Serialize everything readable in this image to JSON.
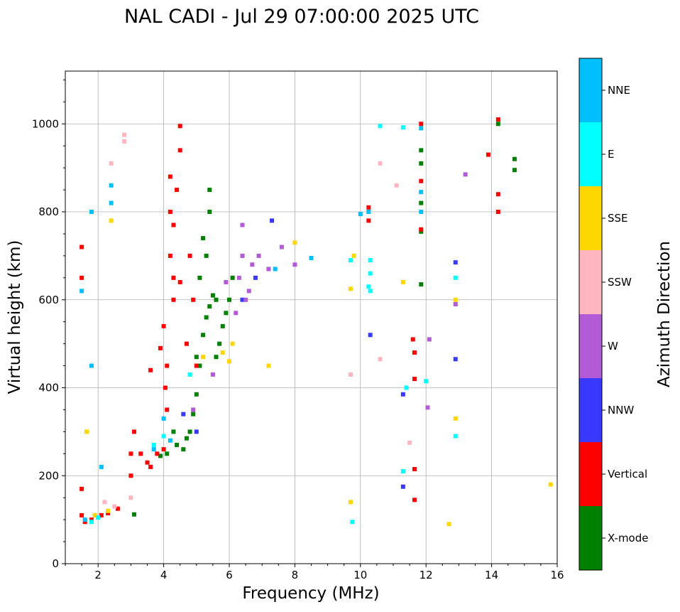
{
  "chart_data": {
    "type": "scatter",
    "title": "NAL CADI - Jul 29 07:00:00 2025 UTC",
    "xlabel": "Frequency (MHz)",
    "ylabel": "Virtual height (km)",
    "xlim": [
      1,
      16
    ],
    "ylim": [
      0,
      1120
    ],
    "xticks": [
      2,
      4,
      6,
      8,
      10,
      12,
      14,
      16
    ],
    "yticks": [
      0,
      200,
      400,
      600,
      800,
      1000
    ],
    "grid": true,
    "colorbar": {
      "label": "Azimuth Direction",
      "categories": [
        "X-mode",
        "Vertical",
        "NNW",
        "W",
        "SSW",
        "SSE",
        "E",
        "NNE"
      ],
      "colors": [
        "#008000",
        "#ff0000",
        "#3838ff",
        "#b35ad6",
        "#ffb6c1",
        "#ffd700",
        "#00ffff",
        "#00bfff"
      ]
    },
    "series": [
      {
        "name": "X-mode",
        "points": [
          [
            3.1,
            112
          ],
          [
            3.9,
            245
          ],
          [
            4.1,
            250
          ],
          [
            4.3,
            300
          ],
          [
            4.4,
            270
          ],
          [
            4.6,
            260
          ],
          [
            4.7,
            285
          ],
          [
            4.8,
            300
          ],
          [
            4.9,
            340
          ],
          [
            5.0,
            385
          ],
          [
            5.1,
            450
          ],
          [
            5.2,
            520
          ],
          [
            5.3,
            560
          ],
          [
            5.4,
            585
          ],
          [
            5.5,
            610
          ],
          [
            5.6,
            470
          ],
          [
            5.7,
            500
          ],
          [
            5.8,
            540
          ],
          [
            5.9,
            570
          ],
          [
            6.0,
            600
          ],
          [
            5.1,
            650
          ],
          [
            5.3,
            700
          ],
          [
            5.2,
            740
          ],
          [
            5.4,
            800
          ],
          [
            5.4,
            850
          ],
          [
            6.1,
            650
          ],
          [
            11.85,
            940
          ],
          [
            11.85,
            910
          ],
          [
            11.85,
            820
          ],
          [
            11.85,
            755
          ],
          [
            11.85,
            635
          ],
          [
            14.2,
            1000
          ],
          [
            14.7,
            920
          ],
          [
            14.7,
            895
          ],
          [
            5.0,
            470
          ],
          [
            5.6,
            600
          ]
        ]
      },
      {
        "name": "Vertical",
        "points": [
          [
            1.5,
            170
          ],
          [
            1.5,
            110
          ],
          [
            1.6,
            95
          ],
          [
            1.8,
            100
          ],
          [
            2.1,
            110
          ],
          [
            2.3,
            115
          ],
          [
            2.6,
            125
          ],
          [
            3.0,
            200
          ],
          [
            3.0,
            250
          ],
          [
            3.1,
            300
          ],
          [
            3.3,
            250
          ],
          [
            3.5,
            230
          ],
          [
            3.6,
            220
          ],
          [
            3.8,
            250
          ],
          [
            4.0,
            260
          ],
          [
            4.1,
            350
          ],
          [
            4.05,
            400
          ],
          [
            4.1,
            450
          ],
          [
            4.0,
            540
          ],
          [
            3.9,
            490
          ],
          [
            3.6,
            440
          ],
          [
            4.3,
            600
          ],
          [
            4.3,
            650
          ],
          [
            4.2,
            700
          ],
          [
            4.3,
            770
          ],
          [
            4.2,
            800
          ],
          [
            4.4,
            850
          ],
          [
            4.2,
            880
          ],
          [
            4.5,
            995
          ],
          [
            4.5,
            940
          ],
          [
            4.5,
            640
          ],
          [
            4.8,
            700
          ],
          [
            4.9,
            600
          ],
          [
            4.7,
            500
          ],
          [
            5.0,
            450
          ],
          [
            1.5,
            720
          ],
          [
            1.5,
            650
          ],
          [
            10.25,
            780
          ],
          [
            10.25,
            810
          ],
          [
            11.85,
            1000
          ],
          [
            11.85,
            870
          ],
          [
            11.85,
            760
          ],
          [
            11.6,
            510
          ],
          [
            11.65,
            480
          ],
          [
            11.65,
            420
          ],
          [
            11.65,
            215
          ],
          [
            11.65,
            145
          ],
          [
            14.2,
            1010
          ],
          [
            13.9,
            930
          ],
          [
            14.2,
            840
          ],
          [
            14.2,
            800
          ]
        ]
      },
      {
        "name": "NNW",
        "points": [
          [
            11.3,
            385
          ],
          [
            11.3,
            175
          ],
          [
            12.9,
            685
          ],
          [
            12.9,
            465
          ],
          [
            4.6,
            340
          ],
          [
            5.0,
            300
          ],
          [
            6.4,
            600
          ],
          [
            7.3,
            780
          ],
          [
            10.3,
            520
          ],
          [
            6.8,
            650
          ]
        ]
      },
      {
        "name": "W",
        "points": [
          [
            6.4,
            770
          ],
          [
            6.4,
            700
          ],
          [
            6.3,
            650
          ],
          [
            6.5,
            600
          ],
          [
            6.6,
            620
          ],
          [
            6.7,
            680
          ],
          [
            6.9,
            700
          ],
          [
            6.2,
            570
          ],
          [
            5.5,
            430
          ],
          [
            12.1,
            510
          ],
          [
            12.05,
            355
          ],
          [
            13.2,
            885
          ],
          [
            12.9,
            590
          ],
          [
            7.2,
            670
          ],
          [
            7.6,
            720
          ],
          [
            8.0,
            680
          ],
          [
            4.9,
            350
          ],
          [
            5.9,
            640
          ]
        ]
      },
      {
        "name": "SSW",
        "points": [
          [
            2.8,
            975
          ],
          [
            2.8,
            960
          ],
          [
            2.4,
            910
          ],
          [
            10.6,
            910
          ],
          [
            11.1,
            860
          ],
          [
            10.6,
            465
          ],
          [
            9.7,
            430
          ],
          [
            11.5,
            275
          ],
          [
            2.2,
            140
          ],
          [
            2.5,
            130
          ],
          [
            3.0,
            150
          ]
        ]
      },
      {
        "name": "SSE",
        "points": [
          [
            1.65,
            300
          ],
          [
            2.4,
            780
          ],
          [
            6.0,
            460
          ],
          [
            6.1,
            500
          ],
          [
            5.8,
            480
          ],
          [
            9.8,
            700
          ],
          [
            9.7,
            625
          ],
          [
            11.3,
            640
          ],
          [
            12.9,
            600
          ],
          [
            12.9,
            330
          ],
          [
            12.7,
            90
          ],
          [
            15.8,
            180
          ],
          [
            9.7,
            140
          ],
          [
            1.9,
            110
          ],
          [
            2.3,
            120
          ],
          [
            7.2,
            450
          ],
          [
            5.2,
            470
          ],
          [
            8.0,
            730
          ]
        ]
      },
      {
        "name": "E",
        "points": [
          [
            10.3,
            690
          ],
          [
            10.3,
            660
          ],
          [
            10.25,
            630
          ],
          [
            10.3,
            620
          ],
          [
            12.9,
            650
          ],
          [
            12.9,
            290
          ],
          [
            11.3,
            210
          ],
          [
            11.4,
            400
          ],
          [
            12.0,
            415
          ],
          [
            10.6,
            995
          ],
          [
            11.3,
            992
          ],
          [
            9.7,
            690
          ],
          [
            9.75,
            95
          ],
          [
            4.8,
            430
          ],
          [
            3.7,
            270
          ],
          [
            4.0,
            290
          ],
          [
            2.0,
            105
          ],
          [
            1.8,
            95
          ]
        ]
      },
      {
        "name": "NNE",
        "points": [
          [
            1.5,
            620
          ],
          [
            1.8,
            800
          ],
          [
            1.8,
            450
          ],
          [
            2.4,
            860
          ],
          [
            2.4,
            820
          ],
          [
            2.1,
            220
          ],
          [
            1.6,
            100
          ],
          [
            11.85,
            845
          ],
          [
            11.85,
            800
          ],
          [
            11.85,
            990
          ],
          [
            10.0,
            795
          ],
          [
            10.25,
            800
          ],
          [
            4.0,
            330
          ],
          [
            4.2,
            280
          ],
          [
            3.7,
            260
          ],
          [
            8.5,
            695
          ],
          [
            7.4,
            670
          ]
        ]
      }
    ]
  }
}
